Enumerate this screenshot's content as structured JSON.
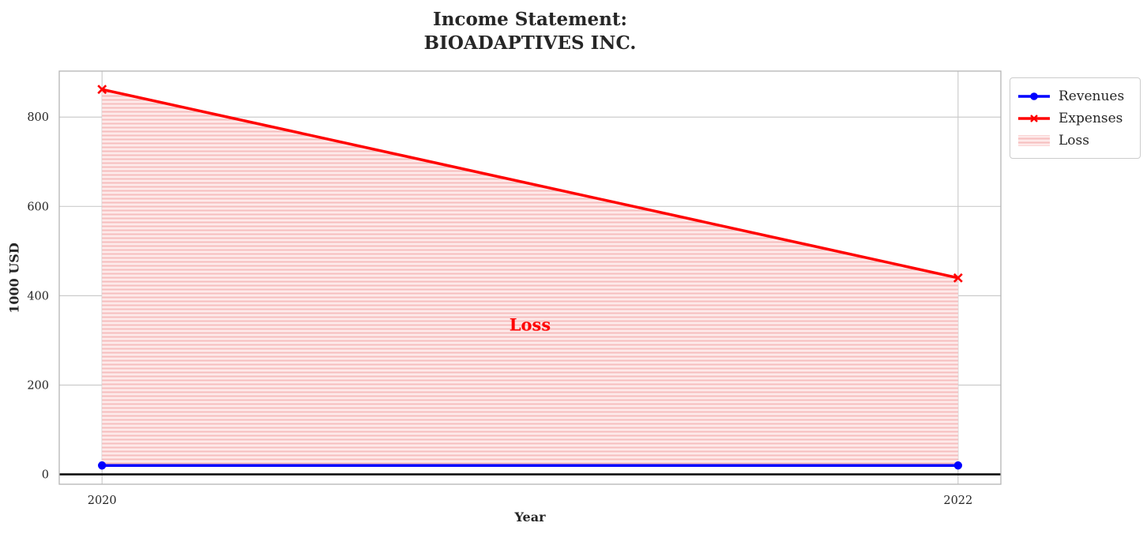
{
  "chart_data": {
    "type": "line",
    "title": "Income Statement:\nBIOADAPTIVES INC.",
    "xlabel": "Year",
    "ylabel": "1000 USD",
    "x": [
      2020,
      2022
    ],
    "xticks": [
      2020,
      2022
    ],
    "yticks": [
      0,
      200,
      400,
      600,
      800
    ],
    "xlim": [
      2019.9,
      2022.1
    ],
    "ylim": [
      -22,
      903
    ],
    "grid": true,
    "legend_position": "outside upper right",
    "series": [
      {
        "name": "Revenues",
        "values": [
          20,
          20
        ],
        "color": "#0000ff",
        "marker": "circle",
        "linewidth": 3.5
      },
      {
        "name": "Expenses",
        "values": [
          862,
          440
        ],
        "color": "#ff0000",
        "marker": "x",
        "linewidth": 3.5
      }
    ],
    "loss_area": {
      "label": "Loss",
      "between": [
        "Revenues",
        "Expenses"
      ],
      "facecolor": "#fdeaea",
      "hatch_line_color": "#f6bebe",
      "hatch": "-"
    },
    "annotation": {
      "text": "Loss",
      "x": 2021,
      "y": 335,
      "color": "#ff0000"
    },
    "zero_line": {
      "y": 0,
      "color": "#000000",
      "linewidth": 2.5
    },
    "axis_colors": {
      "text": "#262626",
      "grid": "#cccccc",
      "spine": "#b5b5b5"
    }
  }
}
